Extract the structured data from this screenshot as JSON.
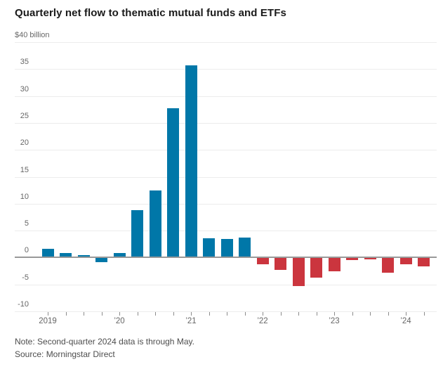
{
  "chart_data": {
    "type": "bar",
    "title": "Quarterly net flow to thematic mutual funds and ETFs",
    "unit_label": "$40 billion",
    "xlabel": "",
    "ylabel": "",
    "ylim": [
      -10,
      40
    ],
    "grid": true,
    "legend": false,
    "yticks": [
      40,
      35,
      30,
      25,
      20,
      15,
      10,
      5,
      0,
      -5,
      -10
    ],
    "ytick_labels": [
      "$40 billion",
      "35",
      "30",
      "25",
      "20",
      "15",
      "10",
      "5",
      "0",
      "-5",
      "-10"
    ],
    "categories": [
      "2019 Q1",
      "2019 Q2",
      "2019 Q3",
      "2019 Q4",
      "2020 Q1",
      "2020 Q2",
      "2020 Q3",
      "2020 Q4",
      "2021 Q1",
      "2021 Q2",
      "2021 Q3",
      "2021 Q4",
      "2022 Q1",
      "2022 Q2",
      "2022 Q3",
      "2022 Q4",
      "2023 Q1",
      "2023 Q2",
      "2023 Q3",
      "2023 Q4",
      "2024 Q1",
      "2024 Q2"
    ],
    "values": [
      1.6,
      0.9,
      0.4,
      -0.9,
      0.8,
      8.8,
      12.4,
      27.7,
      35.7,
      3.6,
      3.5,
      3.7,
      -1.2,
      -2.3,
      -5.3,
      -3.8,
      -2.6,
      -0.5,
      -0.4,
      -2.8,
      -1.2,
      -1.7
    ],
    "bar_colors": [
      "#0077a8",
      "#0077a8",
      "#0077a8",
      "#0077a8",
      "#0077a8",
      "#0077a8",
      "#0077a8",
      "#0077a8",
      "#0077a8",
      "#0077a8",
      "#0077a8",
      "#0077a8",
      "#cb353e",
      "#cb353e",
      "#cb353e",
      "#cb353e",
      "#cb353e",
      "#cb353e",
      "#cb353e",
      "#cb353e",
      "#cb353e",
      "#cb353e"
    ],
    "x_year_labels": [
      {
        "index": 0,
        "label": "2019"
      },
      {
        "index": 4,
        "label": "’20"
      },
      {
        "index": 8,
        "label": "’21"
      },
      {
        "index": 12,
        "label": "’22"
      },
      {
        "index": 16,
        "label": "’23"
      },
      {
        "index": 20,
        "label": "’24"
      }
    ]
  },
  "colors": {
    "bar_blue": "#0077a8",
    "bar_red": "#cb353e",
    "zero_line": "#999999",
    "gridline": "#ececec",
    "axis_text": "#666666",
    "title_text": "#1a1a1a",
    "note_text": "#4d4d4d"
  },
  "footer": {
    "note": "Note: Second-quarter 2024 data is through May.",
    "source": "Source: Morningstar Direct"
  }
}
